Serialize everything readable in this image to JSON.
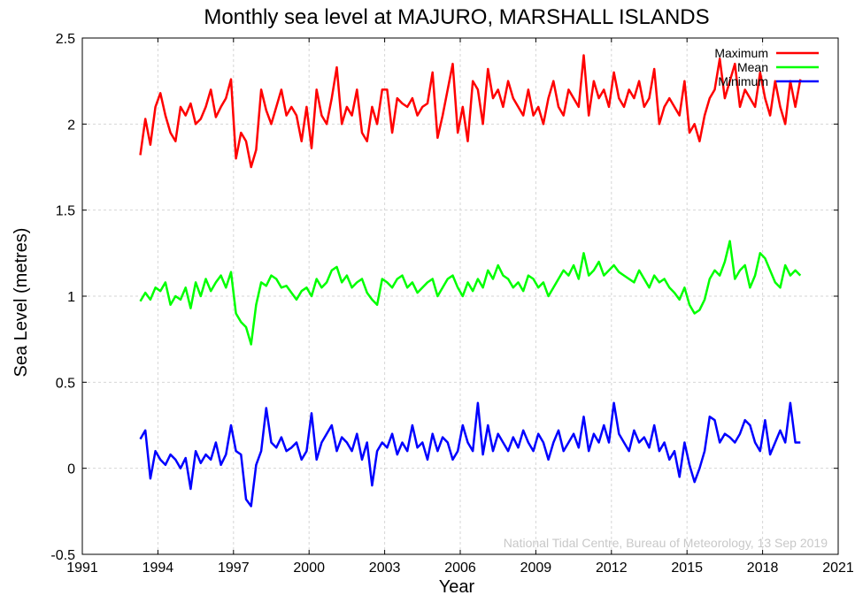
{
  "chart_data": {
    "type": "line",
    "title": "Monthly sea level at MAJURO, MARSHALL ISLANDS",
    "xlabel": "Year",
    "ylabel": "Sea Level (metres)",
    "xlim": [
      1991,
      2021
    ],
    "ylim": [
      -0.5,
      2.5
    ],
    "xticks": [
      1991,
      1994,
      1997,
      2000,
      2003,
      2006,
      2009,
      2012,
      2015,
      2018,
      2021
    ],
    "yticks": [
      -0.5,
      0,
      0.5,
      1,
      1.5,
      2,
      2.5
    ],
    "grid": true,
    "legend_position": "top-right",
    "credit": "National Tidal Centre, Bureau of Meteorology, 13 Sep 2019",
    "series_colors": [
      "#ff0000",
      "#00ff00",
      "#0000ff"
    ],
    "series": [
      {
        "name": "Maximum",
        "x": [
          1993.3,
          1993.5,
          1993.7,
          1993.9,
          1994.1,
          1994.3,
          1994.5,
          1994.7,
          1994.9,
          1995.1,
          1995.3,
          1995.5,
          1995.7,
          1995.9,
          1996.1,
          1996.3,
          1996.5,
          1996.7,
          1996.9,
          1997.1,
          1997.3,
          1997.5,
          1997.7,
          1997.9,
          1998.1,
          1998.3,
          1998.5,
          1998.7,
          1998.9,
          1999.1,
          1999.3,
          1999.5,
          1999.7,
          1999.9,
          2000.1,
          2000.3,
          2000.5,
          2000.7,
          2000.9,
          2001.1,
          2001.3,
          2001.5,
          2001.7,
          2001.9,
          2002.1,
          2002.3,
          2002.5,
          2002.7,
          2002.9,
          2003.1,
          2003.3,
          2003.5,
          2003.7,
          2003.9,
          2004.1,
          2004.3,
          2004.5,
          2004.7,
          2004.9,
          2005.1,
          2005.3,
          2005.5,
          2005.7,
          2005.9,
          2006.1,
          2006.3,
          2006.5,
          2006.7,
          2006.9,
          2007.1,
          2007.3,
          2007.5,
          2007.7,
          2007.9,
          2008.1,
          2008.3,
          2008.5,
          2008.7,
          2008.9,
          2009.1,
          2009.3,
          2009.5,
          2009.7,
          2009.9,
          2010.1,
          2010.3,
          2010.5,
          2010.7,
          2010.9,
          2011.1,
          2011.3,
          2011.5,
          2011.7,
          2011.9,
          2012.1,
          2012.3,
          2012.5,
          2012.7,
          2012.9,
          2013.1,
          2013.3,
          2013.5,
          2013.7,
          2013.9,
          2014.1,
          2014.3,
          2014.5,
          2014.7,
          2014.9,
          2015.1,
          2015.3,
          2015.5,
          2015.7,
          2015.9,
          2016.1,
          2016.3,
          2016.5,
          2016.7,
          2016.9,
          2017.1,
          2017.3,
          2017.5,
          2017.7,
          2017.9,
          2018.1,
          2018.3,
          2018.5,
          2018.7,
          2018.9,
          2019.1,
          2019.3,
          2019.5
        ],
        "values": [
          1.82,
          2.03,
          1.88,
          2.1,
          2.18,
          2.05,
          1.95,
          1.9,
          2.1,
          2.05,
          2.12,
          2.0,
          2.03,
          2.1,
          2.2,
          2.04,
          2.1,
          2.15,
          2.26,
          1.8,
          1.95,
          1.9,
          1.75,
          1.85,
          2.2,
          2.08,
          2.0,
          2.1,
          2.2,
          2.05,
          2.1,
          2.05,
          1.9,
          2.1,
          1.86,
          2.2,
          2.05,
          2.0,
          2.15,
          2.33,
          2.0,
          2.1,
          2.05,
          2.2,
          1.95,
          1.9,
          2.1,
          2.0,
          2.2,
          2.2,
          1.95,
          2.15,
          2.12,
          2.1,
          2.15,
          2.05,
          2.1,
          2.12,
          2.3,
          1.92,
          2.05,
          2.2,
          2.35,
          1.95,
          2.1,
          1.9,
          2.25,
          2.2,
          2.0,
          2.32,
          2.15,
          2.2,
          2.1,
          2.25,
          2.15,
          2.1,
          2.05,
          2.2,
          2.05,
          2.1,
          2.0,
          2.15,
          2.25,
          2.1,
          2.05,
          2.2,
          2.15,
          2.1,
          2.4,
          2.05,
          2.25,
          2.15,
          2.2,
          2.1,
          2.3,
          2.15,
          2.1,
          2.2,
          2.15,
          2.25,
          2.1,
          2.15,
          2.32,
          2.0,
          2.1,
          2.15,
          2.1,
          2.05,
          2.25,
          1.95,
          2.0,
          1.9,
          2.05,
          2.15,
          2.2,
          2.38,
          2.15,
          2.25,
          2.35,
          2.1,
          2.2,
          2.15,
          2.1,
          2.3,
          2.15,
          2.05,
          2.25,
          2.1,
          2.0,
          2.25,
          2.1,
          2.26
        ]
      },
      {
        "name": "Mean",
        "x": [
          1993.3,
          1993.5,
          1993.7,
          1993.9,
          1994.1,
          1994.3,
          1994.5,
          1994.7,
          1994.9,
          1995.1,
          1995.3,
          1995.5,
          1995.7,
          1995.9,
          1996.1,
          1996.3,
          1996.5,
          1996.7,
          1996.9,
          1997.1,
          1997.3,
          1997.5,
          1997.7,
          1997.9,
          1998.1,
          1998.3,
          1998.5,
          1998.7,
          1998.9,
          1999.1,
          1999.3,
          1999.5,
          1999.7,
          1999.9,
          2000.1,
          2000.3,
          2000.5,
          2000.7,
          2000.9,
          2001.1,
          2001.3,
          2001.5,
          2001.7,
          2001.9,
          2002.1,
          2002.3,
          2002.5,
          2002.7,
          2002.9,
          2003.1,
          2003.3,
          2003.5,
          2003.7,
          2003.9,
          2004.1,
          2004.3,
          2004.5,
          2004.7,
          2004.9,
          2005.1,
          2005.3,
          2005.5,
          2005.7,
          2005.9,
          2006.1,
          2006.3,
          2006.5,
          2006.7,
          2006.9,
          2007.1,
          2007.3,
          2007.5,
          2007.7,
          2007.9,
          2008.1,
          2008.3,
          2008.5,
          2008.7,
          2008.9,
          2009.1,
          2009.3,
          2009.5,
          2009.7,
          2009.9,
          2010.1,
          2010.3,
          2010.5,
          2010.7,
          2010.9,
          2011.1,
          2011.3,
          2011.5,
          2011.7,
          2011.9,
          2012.1,
          2012.3,
          2012.5,
          2012.7,
          2012.9,
          2013.1,
          2013.3,
          2013.5,
          2013.7,
          2013.9,
          2014.1,
          2014.3,
          2014.5,
          2014.7,
          2014.9,
          2015.1,
          2015.3,
          2015.5,
          2015.7,
          2015.9,
          2016.1,
          2016.3,
          2016.5,
          2016.7,
          2016.9,
          2017.1,
          2017.3,
          2017.5,
          2017.7,
          2017.9,
          2018.1,
          2018.3,
          2018.5,
          2018.7,
          2018.9,
          2019.1,
          2019.3,
          2019.5
        ],
        "values": [
          0.97,
          1.02,
          0.98,
          1.05,
          1.03,
          1.08,
          0.95,
          1.0,
          0.98,
          1.05,
          0.93,
          1.08,
          1.0,
          1.1,
          1.03,
          1.08,
          1.12,
          1.05,
          1.14,
          0.9,
          0.85,
          0.82,
          0.72,
          0.95,
          1.08,
          1.06,
          1.12,
          1.1,
          1.05,
          1.06,
          1.02,
          0.98,
          1.03,
          1.05,
          1.0,
          1.1,
          1.05,
          1.08,
          1.15,
          1.17,
          1.08,
          1.12,
          1.05,
          1.08,
          1.1,
          1.02,
          0.98,
          0.95,
          1.1,
          1.08,
          1.05,
          1.1,
          1.12,
          1.05,
          1.08,
          1.02,
          1.05,
          1.08,
          1.1,
          1.0,
          1.05,
          1.1,
          1.12,
          1.05,
          1.0,
          1.08,
          1.03,
          1.1,
          1.05,
          1.15,
          1.1,
          1.18,
          1.12,
          1.1,
          1.05,
          1.08,
          1.03,
          1.12,
          1.1,
          1.05,
          1.08,
          1.0,
          1.05,
          1.1,
          1.15,
          1.12,
          1.18,
          1.1,
          1.25,
          1.12,
          1.15,
          1.2,
          1.12,
          1.15,
          1.18,
          1.14,
          1.12,
          1.1,
          1.08,
          1.15,
          1.1,
          1.05,
          1.12,
          1.08,
          1.1,
          1.05,
          1.02,
          0.98,
          1.05,
          0.95,
          0.9,
          0.92,
          0.98,
          1.1,
          1.15,
          1.12,
          1.2,
          1.32,
          1.1,
          1.15,
          1.18,
          1.05,
          1.12,
          1.25,
          1.22,
          1.15,
          1.08,
          1.05,
          1.18,
          1.12,
          1.15,
          1.12
        ]
      },
      {
        "name": "Minimum",
        "x": [
          1993.3,
          1993.5,
          1993.7,
          1993.9,
          1994.1,
          1994.3,
          1994.5,
          1994.7,
          1994.9,
          1995.1,
          1995.3,
          1995.5,
          1995.7,
          1995.9,
          1996.1,
          1996.3,
          1996.5,
          1996.7,
          1996.9,
          1997.1,
          1997.3,
          1997.5,
          1997.7,
          1997.9,
          1998.1,
          1998.3,
          1998.5,
          1998.7,
          1998.9,
          1999.1,
          1999.3,
          1999.5,
          1999.7,
          1999.9,
          2000.1,
          2000.3,
          2000.5,
          2000.7,
          2000.9,
          2001.1,
          2001.3,
          2001.5,
          2001.7,
          2001.9,
          2002.1,
          2002.3,
          2002.5,
          2002.7,
          2002.9,
          2003.1,
          2003.3,
          2003.5,
          2003.7,
          2003.9,
          2004.1,
          2004.3,
          2004.5,
          2004.7,
          2004.9,
          2005.1,
          2005.3,
          2005.5,
          2005.7,
          2005.9,
          2006.1,
          2006.3,
          2006.5,
          2006.7,
          2006.9,
          2007.1,
          2007.3,
          2007.5,
          2007.7,
          2007.9,
          2008.1,
          2008.3,
          2008.5,
          2008.7,
          2008.9,
          2009.1,
          2009.3,
          2009.5,
          2009.7,
          2009.9,
          2010.1,
          2010.3,
          2010.5,
          2010.7,
          2010.9,
          2011.1,
          2011.3,
          2011.5,
          2011.7,
          2011.9,
          2012.1,
          2012.3,
          2012.5,
          2012.7,
          2012.9,
          2013.1,
          2013.3,
          2013.5,
          2013.7,
          2013.9,
          2014.1,
          2014.3,
          2014.5,
          2014.7,
          2014.9,
          2015.1,
          2015.3,
          2015.5,
          2015.7,
          2015.9,
          2016.1,
          2016.3,
          2016.5,
          2016.7,
          2016.9,
          2017.1,
          2017.3,
          2017.5,
          2017.7,
          2017.9,
          2018.1,
          2018.3,
          2018.5,
          2018.7,
          2018.9,
          2019.1,
          2019.3,
          2019.5
        ],
        "values": [
          0.17,
          0.22,
          -0.06,
          0.1,
          0.05,
          0.02,
          0.08,
          0.05,
          0.0,
          0.06,
          -0.12,
          0.1,
          0.03,
          0.08,
          0.05,
          0.15,
          0.02,
          0.08,
          0.25,
          0.1,
          0.08,
          -0.18,
          -0.22,
          0.02,
          0.1,
          0.35,
          0.15,
          0.12,
          0.18,
          0.1,
          0.12,
          0.15,
          0.05,
          0.1,
          0.32,
          0.05,
          0.15,
          0.2,
          0.25,
          0.1,
          0.18,
          0.15,
          0.1,
          0.2,
          0.05,
          0.15,
          -0.1,
          0.1,
          0.15,
          0.12,
          0.2,
          0.08,
          0.15,
          0.1,
          0.25,
          0.12,
          0.15,
          0.05,
          0.2,
          0.1,
          0.18,
          0.15,
          0.05,
          0.1,
          0.25,
          0.15,
          0.1,
          0.38,
          0.08,
          0.25,
          0.1,
          0.2,
          0.15,
          0.1,
          0.18,
          0.12,
          0.22,
          0.15,
          0.1,
          0.2,
          0.15,
          0.05,
          0.15,
          0.22,
          0.1,
          0.15,
          0.2,
          0.12,
          0.3,
          0.1,
          0.2,
          0.15,
          0.25,
          0.15,
          0.38,
          0.2,
          0.15,
          0.1,
          0.22,
          0.15,
          0.18,
          0.12,
          0.25,
          0.1,
          0.15,
          0.05,
          0.1,
          -0.05,
          0.15,
          0.02,
          -0.08,
          0.0,
          0.1,
          0.3,
          0.28,
          0.15,
          0.2,
          0.18,
          0.15,
          0.2,
          0.28,
          0.25,
          0.15,
          0.1,
          0.28,
          0.08,
          0.15,
          0.22,
          0.15,
          0.38,
          0.15,
          0.15
        ]
      }
    ]
  }
}
